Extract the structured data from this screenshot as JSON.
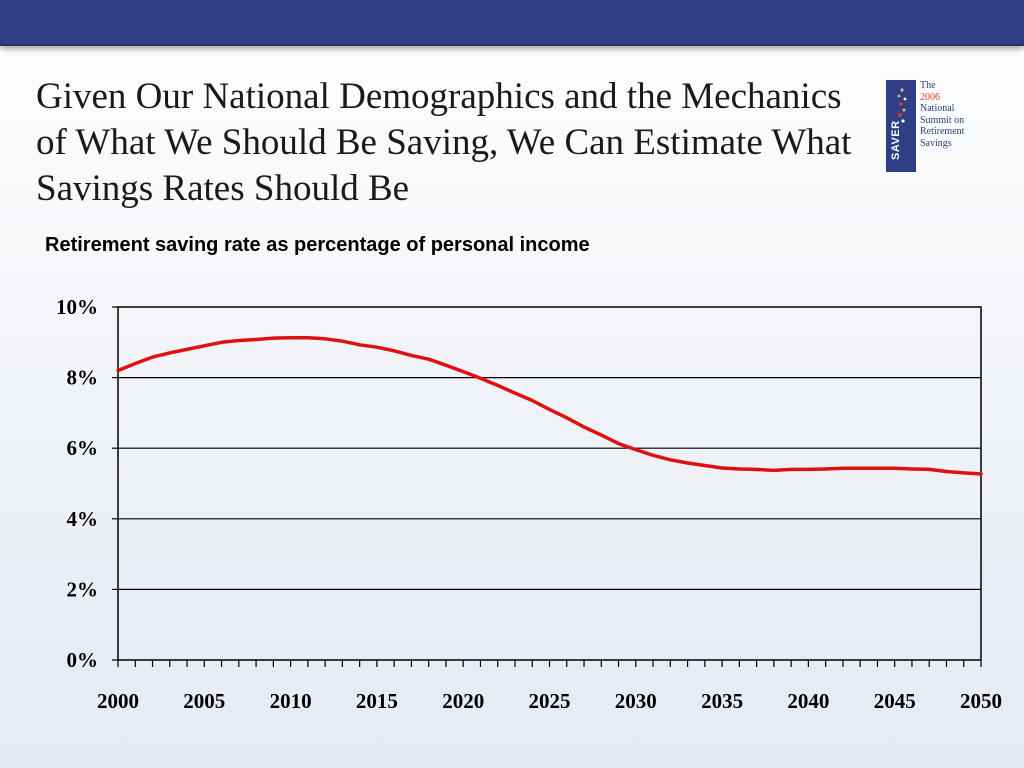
{
  "slide": {
    "title": "Given Our National Demographics and the Mechanics of What We Should Be Saving, We Can Estimate What Savings Rates Should Be"
  },
  "logo": {
    "mark_text": "SAVER",
    "lines": [
      "The",
      "2006",
      "National",
      "Summit on",
      "Retirement",
      "Savings"
    ],
    "colors": {
      "brand": "#2e3f85",
      "accent": "#d0401a"
    }
  },
  "colors": {
    "header_bar": "#2e3f85",
    "series_line": "#e01010"
  },
  "chart_data": {
    "type": "line",
    "title": "Retirement saving rate as percentage of personal income",
    "xlabel": "",
    "ylabel": "",
    "xlim": [
      2000,
      2050
    ],
    "ylim": [
      0,
      10
    ],
    "y_ticks": [
      0,
      2,
      4,
      6,
      8,
      10
    ],
    "y_tick_labels": [
      "0%",
      "2%",
      "4%",
      "6%",
      "8%",
      "10%"
    ],
    "x_ticks": [
      2000,
      2005,
      2010,
      2015,
      2020,
      2025,
      2030,
      2035,
      2040,
      2045,
      2050
    ],
    "x_tick_labels": [
      "2000",
      "2005",
      "2010",
      "2015",
      "2020",
      "2025",
      "2030",
      "2035",
      "2040",
      "2045",
      "2050"
    ],
    "grid": true,
    "legend": "none",
    "series": [
      {
        "color": "#e01010",
        "x": [
          2000,
          2001,
          2002,
          2003,
          2004,
          2005,
          2006,
          2007,
          2008,
          2009,
          2010,
          2011,
          2012,
          2013,
          2014,
          2015,
          2016,
          2017,
          2018,
          2019,
          2020,
          2021,
          2022,
          2023,
          2024,
          2025,
          2026,
          2027,
          2028,
          2029,
          2030,
          2031,
          2032,
          2033,
          2034,
          2035,
          2036,
          2037,
          2038,
          2039,
          2040,
          2041,
          2042,
          2043,
          2044,
          2045,
          2046,
          2047,
          2048,
          2049,
          2050
        ],
        "values": [
          8.2,
          8.4,
          8.58,
          8.7,
          8.8,
          8.9,
          9.0,
          9.05,
          9.08,
          9.12,
          9.13,
          9.13,
          9.1,
          9.03,
          8.93,
          8.86,
          8.76,
          8.63,
          8.52,
          8.35,
          8.17,
          7.98,
          7.78,
          7.56,
          7.35,
          7.1,
          6.86,
          6.6,
          6.37,
          6.13,
          5.96,
          5.8,
          5.67,
          5.58,
          5.51,
          5.44,
          5.41,
          5.4,
          5.37,
          5.4,
          5.4,
          5.41,
          5.43,
          5.43,
          5.43,
          5.43,
          5.41,
          5.4,
          5.34,
          5.3,
          5.27
        ]
      }
    ]
  }
}
